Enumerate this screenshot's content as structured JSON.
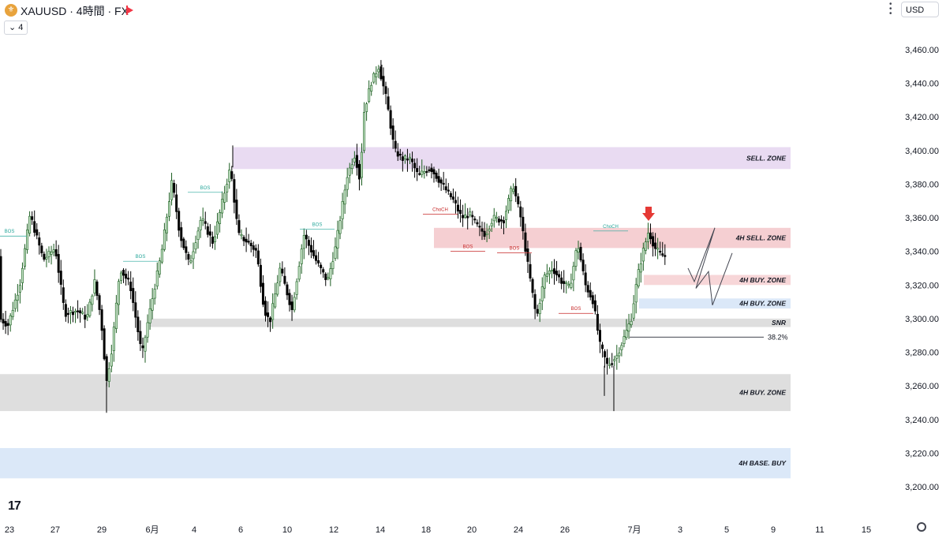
{
  "header": {
    "symbol_title": "XAUUSD · 4時間 · FX",
    "interval_badge": "4",
    "currency": "USD"
  },
  "colors": {
    "bull_body": "#c8e6c9",
    "bull_border": "#1b5e20",
    "bear_body": "#000000",
    "sell_zone": "#e9dbf2",
    "sell4h_zone": "#f5cfd2",
    "buy_red_zone": "#f7d6d8",
    "buy_blue_zone": "#dbe8f8",
    "gray_zone": "#dedede",
    "arrow_red": "#e53935",
    "bos_green": "#26a69a",
    "bos_red": "#c62828"
  },
  "chart_data": {
    "type": "candlestick",
    "title": "",
    "xlabel": "",
    "ylabel": "",
    "ylim": [
      3185,
      3475
    ],
    "y_ticks": [
      3200,
      3220,
      3240,
      3260,
      3280,
      3300,
      3320,
      3340,
      3360,
      3380,
      3400,
      3420,
      3440,
      3460
    ],
    "y_tick_labels": [
      "3,200.00",
      "3,220.00",
      "3,240.00",
      "3,260.00",
      "3,280.00",
      "3,300.00",
      "3,320.00",
      "3,340.00",
      "3,360.00",
      "3,380.00",
      "3,400.00",
      "3,420.00",
      "3,440.00",
      "3,460.00"
    ],
    "x_range": [
      0,
      1140
    ],
    "x_ticks": [
      {
        "pos": 12,
        "label": "23"
      },
      {
        "pos": 70,
        "label": "27"
      },
      {
        "pos": 129,
        "label": "29"
      },
      {
        "pos": 193,
        "label": "6月"
      },
      {
        "pos": 246,
        "label": "4"
      },
      {
        "pos": 305,
        "label": "6"
      },
      {
        "pos": 364,
        "label": "10"
      },
      {
        "pos": 423,
        "label": "12"
      },
      {
        "pos": 482,
        "label": "14"
      },
      {
        "pos": 540,
        "label": "18"
      },
      {
        "pos": 598,
        "label": "20"
      },
      {
        "pos": 657,
        "label": "24"
      },
      {
        "pos": 716,
        "label": "26"
      },
      {
        "pos": 804,
        "label": "7月"
      },
      {
        "pos": 862,
        "label": "3"
      },
      {
        "pos": 921,
        "label": "5"
      },
      {
        "pos": 980,
        "label": "9"
      },
      {
        "pos": 1039,
        "label": "11"
      },
      {
        "pos": 1098,
        "label": "15"
      }
    ],
    "price_path": [
      [
        0,
        3300
      ],
      [
        10,
        3296
      ],
      [
        25,
        3320
      ],
      [
        38,
        3362
      ],
      [
        55,
        3335
      ],
      [
        70,
        3342
      ],
      [
        82,
        3303
      ],
      [
        98,
        3305
      ],
      [
        110,
        3300
      ],
      [
        120,
        3322
      ],
      [
        128,
        3300
      ],
      [
        135,
        3262
      ],
      [
        142,
        3283
      ],
      [
        152,
        3330
      ],
      [
        165,
        3320
      ],
      [
        180,
        3278
      ],
      [
        188,
        3300
      ],
      [
        205,
        3340
      ],
      [
        218,
        3382
      ],
      [
        228,
        3350
      ],
      [
        240,
        3332
      ],
      [
        255,
        3360
      ],
      [
        270,
        3345
      ],
      [
        282,
        3370
      ],
      [
        292,
        3390
      ],
      [
        302,
        3350
      ],
      [
        315,
        3345
      ],
      [
        325,
        3340
      ],
      [
        335,
        3305
      ],
      [
        342,
        3298
      ],
      [
        355,
        3330
      ],
      [
        370,
        3305
      ],
      [
        385,
        3350
      ],
      [
        400,
        3335
      ],
      [
        415,
        3322
      ],
      [
        425,
        3342
      ],
      [
        440,
        3385
      ],
      [
        450,
        3398
      ],
      [
        457,
        3380
      ],
      [
        460,
        3420
      ],
      [
        470,
        3440
      ],
      [
        480,
        3450
      ],
      [
        490,
        3430
      ],
      [
        500,
        3400
      ],
      [
        510,
        3395
      ],
      [
        520,
        3395
      ],
      [
        530,
        3385
      ],
      [
        545,
        3390
      ],
      [
        560,
        3380
      ],
      [
        575,
        3370
      ],
      [
        585,
        3360
      ],
      [
        595,
        3362
      ],
      [
        605,
        3355
      ],
      [
        615,
        3350
      ],
      [
        625,
        3360
      ],
      [
        638,
        3358
      ],
      [
        650,
        3380
      ],
      [
        660,
        3360
      ],
      [
        668,
        3335
      ],
      [
        680,
        3300
      ],
      [
        690,
        3325
      ],
      [
        700,
        3330
      ],
      [
        712,
        3322
      ],
      [
        722,
        3318
      ],
      [
        732,
        3345
      ],
      [
        742,
        3320
      ],
      [
        752,
        3310
      ],
      [
        760,
        3285
      ],
      [
        770,
        3272
      ],
      [
        782,
        3278
      ],
      [
        792,
        3290
      ],
      [
        800,
        3300
      ],
      [
        808,
        3325
      ],
      [
        815,
        3340
      ],
      [
        822,
        3352
      ],
      [
        830,
        3342
      ],
      [
        838,
        3338
      ],
      [
        843,
        3337
      ]
    ],
    "zones": [
      {
        "label": "SELL. ZONE",
        "y_top": 3402,
        "y_bottom": 3389,
        "x_start": 295,
        "x_end": 1002,
        "color": "#e9dbf2"
      },
      {
        "label": "4H  SELL. ZONE",
        "y_top": 3354,
        "y_bottom": 3342,
        "x_start": 550,
        "x_end": 1002,
        "color": "#f5cfd2"
      },
      {
        "label": "4H BUY. ZONE",
        "y_top": 3326,
        "y_bottom": 3320,
        "x_start": 816,
        "x_end": 1002,
        "color": "#f7d6d8"
      },
      {
        "label": "4H BUY. ZONE",
        "y_top": 3312,
        "y_bottom": 3306,
        "x_start": 810,
        "x_end": 1002,
        "color": "#dbe8f8"
      },
      {
        "label": "SNR",
        "y_top": 3300,
        "y_bottom": 3295,
        "x_start": 190,
        "x_end": 1002,
        "color": "#dedede"
      },
      {
        "label": "4H BUY. ZONE",
        "y_top": 3267,
        "y_bottom": 3245,
        "x_start": 0,
        "x_end": 1002,
        "color": "#dedede"
      },
      {
        "label": "4H  BASE. BUY",
        "y_top": 3223,
        "y_bottom": 3205,
        "x_start": 0,
        "x_end": 1002,
        "color": "#dbe8f8"
      }
    ],
    "fib_level": {
      "label": "38.2%",
      "price": 3289,
      "x_start": 798,
      "x_end": 968
    },
    "annotations": [
      {
        "text": "BOS",
        "x": 12,
        "price": 3351,
        "color": "#26a69a"
      },
      {
        "text": "BOS",
        "x": 178,
        "price": 3336,
        "color": "#26a69a"
      },
      {
        "text": "BOS",
        "x": 260,
        "price": 3377,
        "color": "#26a69a"
      },
      {
        "text": "BOS",
        "x": 402,
        "price": 3355,
        "color": "#26a69a"
      },
      {
        "text": "ChoCH",
        "x": 558,
        "price": 3364,
        "color": "#c62828"
      },
      {
        "text": "BOS",
        "x": 593,
        "price": 3342,
        "color": "#c62828"
      },
      {
        "text": "BOS",
        "x": 652,
        "price": 3341,
        "color": "#c62828"
      },
      {
        "text": "BOS",
        "x": 730,
        "price": 3305,
        "color": "#c62828"
      },
      {
        "text": "ChoCH",
        "x": 774,
        "price": 3354,
        "color": "#26a69a"
      }
    ],
    "projection_path": [
      [
        872,
        3330
      ],
      [
        880,
        3322
      ],
      [
        906,
        3354
      ],
      [
        882,
        3318
      ],
      [
        898,
        3328
      ],
      [
        903,
        3308
      ],
      [
        928,
        3339
      ]
    ]
  }
}
